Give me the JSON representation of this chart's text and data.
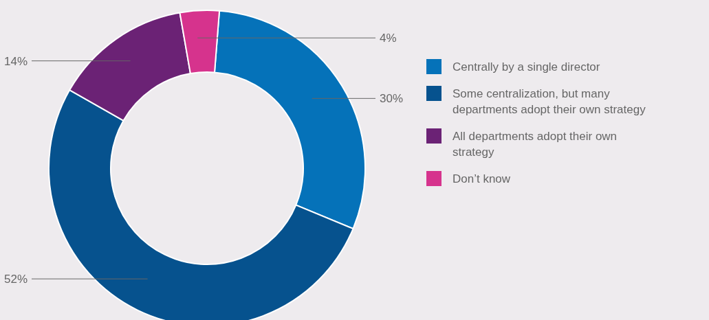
{
  "chart_data": {
    "type": "donut",
    "categories": [
      "Centrally by a single director",
      "Some centralization, but many departments adopt their own strategy",
      "All departments adopt their own strategy",
      "Don’t know"
    ],
    "values": [
      30,
      52,
      14,
      4
    ],
    "colors": [
      "#0572b9",
      "#06528e",
      "#6b2275",
      "#d6338d"
    ],
    "value_labels": [
      "30%",
      "52%",
      "14%",
      "4%"
    ],
    "legend": "right"
  }
}
